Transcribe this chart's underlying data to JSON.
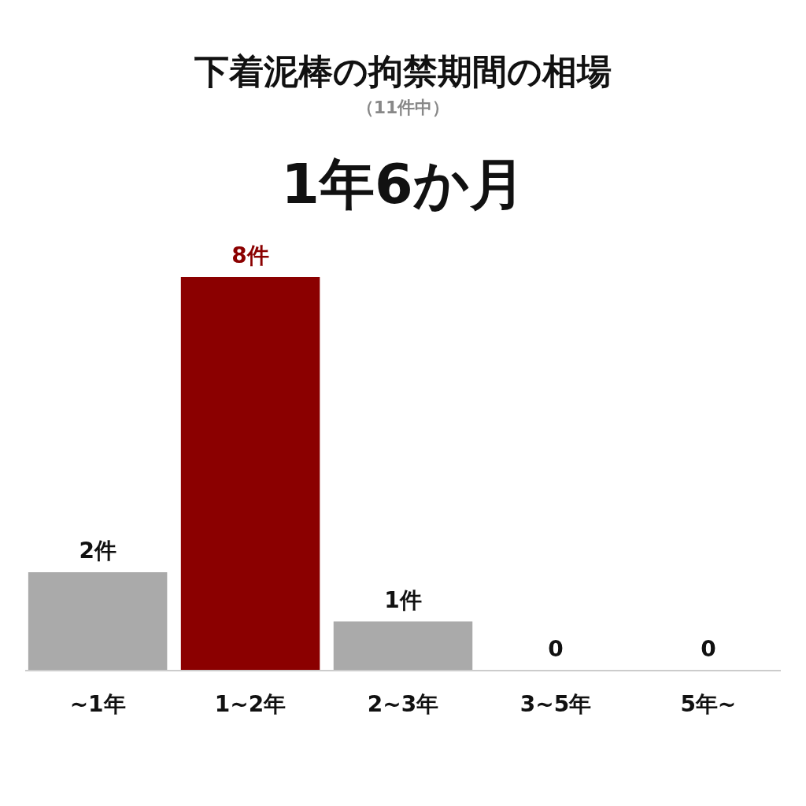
{
  "chart_data": {
    "type": "bar",
    "title": "下着泥棒の拘禁期間の相場",
    "subtitle": "（11件中）",
    "annotations": [
      "1年6か月"
    ],
    "categories": [
      "~1年",
      "1~2年",
      "2~3年",
      "3~5年",
      "5年~"
    ],
    "values": [
      2,
      8,
      1,
      0,
      0
    ],
    "colors": [
      "#aaaaaa",
      "#8b0000",
      "#aaaaaa",
      "#aaaaaa",
      "#aaaaaa"
    ],
    "value_labels": [
      "2件",
      "8件",
      "1件",
      "0",
      "0"
    ]
  }
}
